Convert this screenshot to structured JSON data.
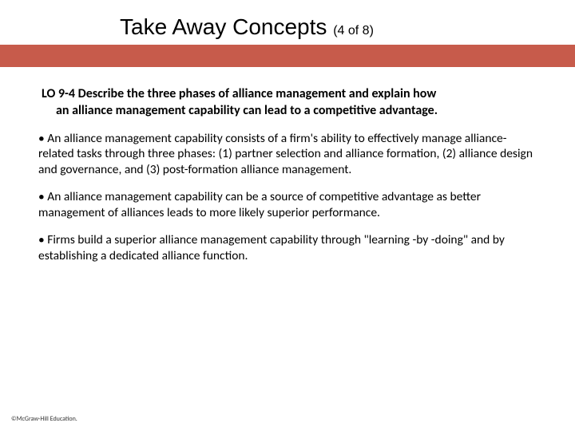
{
  "colors": {
    "accent_bar": "#c75b4b",
    "background": "#ffffff",
    "text": "#000000"
  },
  "typography": {
    "title_fontsize": 28,
    "subtitle_fontsize": 16,
    "heading_fontsize": 16,
    "body_fontsize": 15.5,
    "copyright_fontsize": 8
  },
  "title": {
    "main": "Take Away Concepts ",
    "sub": "(4 of 8)"
  },
  "lo_heading_line1": "LO 9-4  Describe the three phases of alliance management and explain how",
  "lo_heading_line2": "an alliance management capability can lead to a competitive advantage.",
  "bullets": [
    "An alliance management capability consists of a firm's ability to effectively manage alliance-related tasks through three phases: (1) partner selection and alliance formation, (2) alliance design and governance, and (3) post-formation alliance management.",
    "An alliance management capability can be a source of competitive advantage as better management of alliances leads to more likely superior performance.",
    "Firms build a superior alliance management capability through \"learning -by -doing\" and by establishing a dedicated alliance function."
  ],
  "copyright": "©McGraw-Hill Education."
}
